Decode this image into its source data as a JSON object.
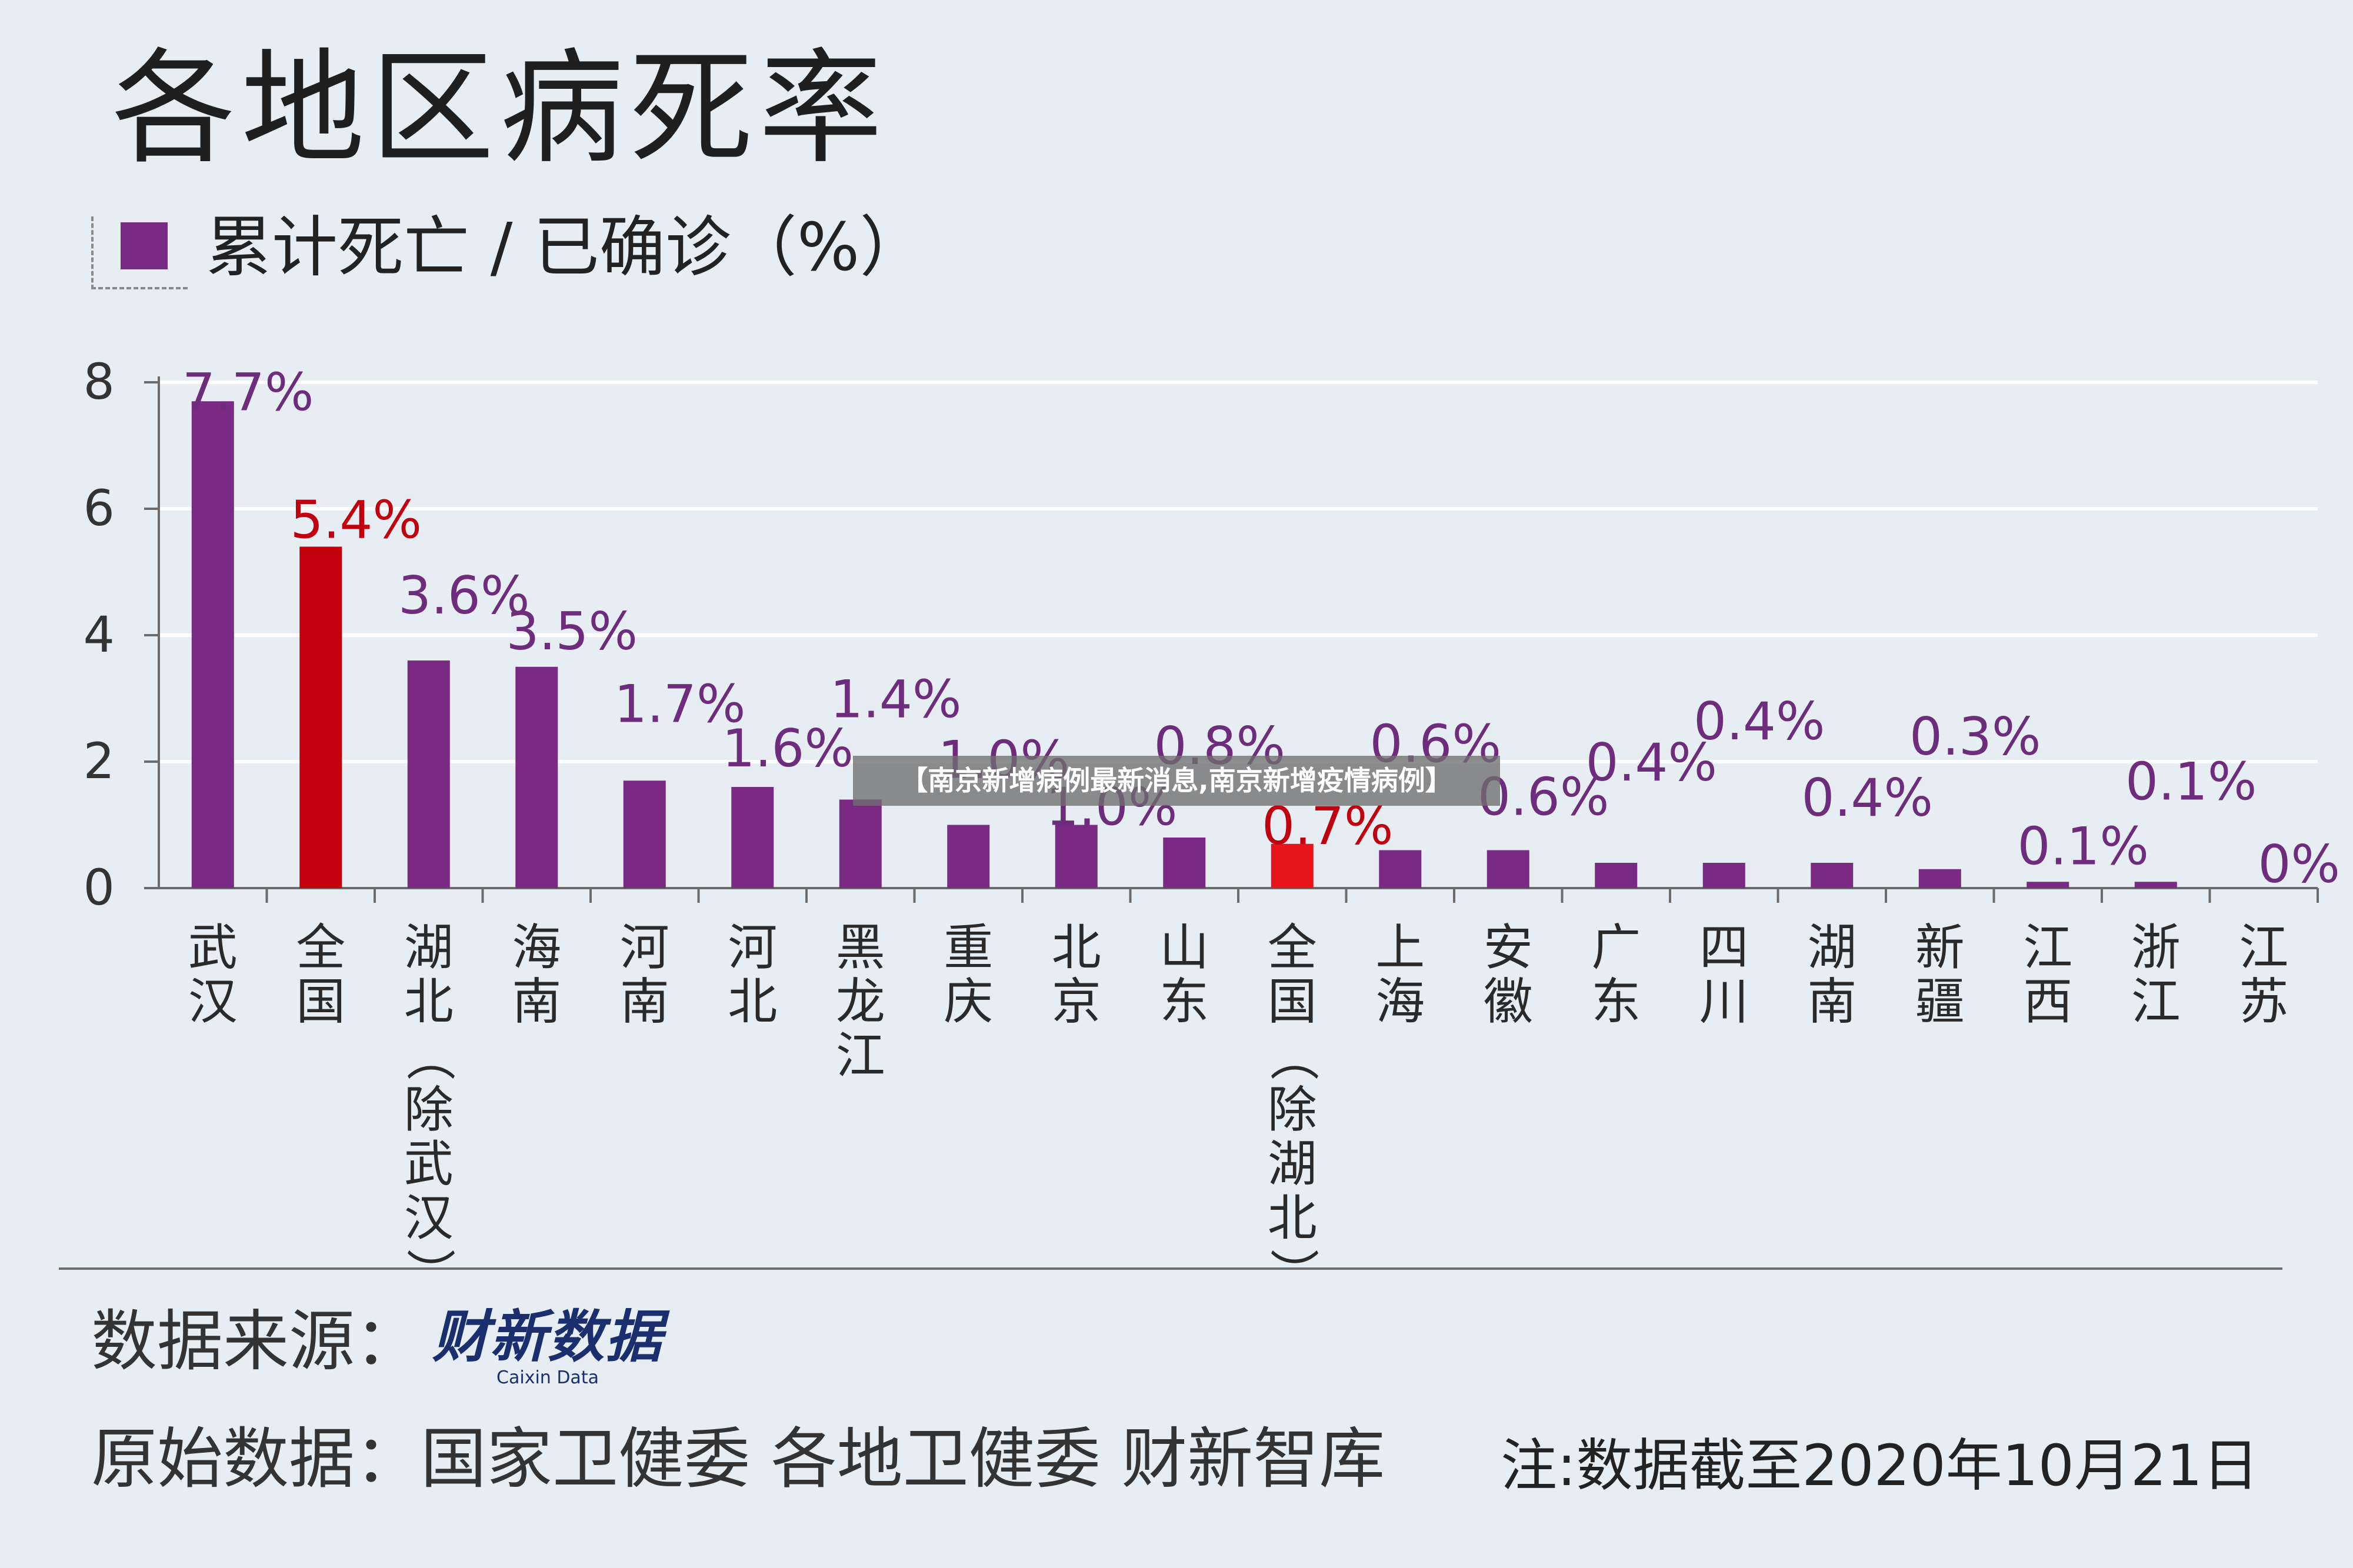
{
  "chart_data": {
    "type": "bar",
    "title": "各地区病死率",
    "legend": "累计死亡 / 已确诊（%）",
    "ylim": [
      0,
      8
    ],
    "yticks": [
      0,
      2,
      4,
      6,
      8
    ],
    "grid": true,
    "categories": [
      "武汉",
      "全国",
      "湖北（除武汉）",
      "海南",
      "河南",
      "河北",
      "黑龙江",
      "重庆",
      "北京",
      "山东",
      "全国（除湖北）",
      "上海",
      "安徽",
      "广东",
      "四川",
      "湖南",
      "新疆",
      "江西",
      "浙江",
      "江苏"
    ],
    "values": [
      7.7,
      5.4,
      3.6,
      3.5,
      1.7,
      1.6,
      1.4,
      1.0,
      1.0,
      0.8,
      0.7,
      0.6,
      0.6,
      0.4,
      0.4,
      0.4,
      0.3,
      0.1,
      0.1,
      0
    ],
    "labels": [
      "7.7%",
      "5.4%",
      "3.6%",
      "3.5%",
      "1.7%",
      "1.6%",
      "1.4%",
      "1.0%",
      "1.0%",
      "0.8%",
      "0.7%",
      "0.6%",
      "0.6%",
      "0.4%",
      "0.4%",
      "0.4%",
      "0.3%",
      "0.1%",
      "0.1%",
      "0%"
    ],
    "highlight_categories": [
      "全国",
      "全国（除湖北）"
    ]
  },
  "colors": {
    "bar": "#7b2a83",
    "highlight": "#c4000c",
    "highlight_alt": "#e8141c",
    "label": "#6d2c7c",
    "highlight_label": "#c0000e",
    "grid": "#ffffff",
    "axis": "#6b6b6b",
    "tick_text": "#333333"
  },
  "footer": {
    "source_label": "数据来源：",
    "source_logo_main": "财新数据",
    "source_logo_sub": "Caixin Data",
    "raw_source": "原始数据：国家卫健委 各地卫健委 财新智库",
    "note": "注:数据截至2020年10月21日"
  },
  "overlay": {
    "banner": "【南京新增病例最新消息,南京新增疫情病例】"
  }
}
